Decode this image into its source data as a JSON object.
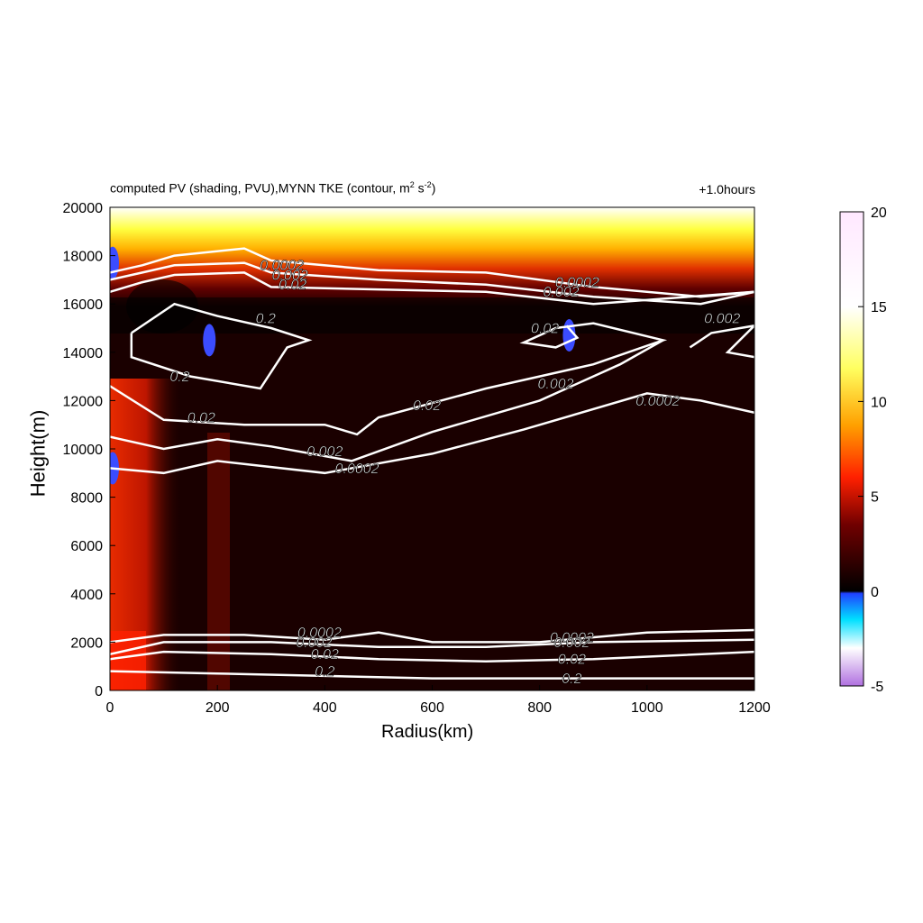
{
  "chart_data": {
    "type": "heatmap",
    "title_prefix": "computed PV (shading, PVU),MYNN TKE (contour, m",
    "title_units_sq": "2",
    "title_mid": " s",
    "title_units_neg2": "-2",
    "title_suffix": ")",
    "time_label": "+1.0hours",
    "xlabel": "Radius(km)",
    "ylabel": "Height(m)",
    "xlim": [
      0,
      1200
    ],
    "ylim": [
      0,
      20000
    ],
    "xticks": [
      "0",
      "200",
      "400",
      "600",
      "800",
      "1000",
      "1200"
    ],
    "yticks": [
      "0",
      "2000",
      "4000",
      "6000",
      "8000",
      "10000",
      "12000",
      "14000",
      "16000",
      "18000",
      "20000"
    ],
    "colorbar": {
      "range": [
        -5,
        20
      ],
      "ticks": [
        "-5",
        "0",
        "5",
        "10",
        "15",
        "20"
      ]
    },
    "contour_levels": [
      "0.0002",
      "0.002",
      "0.02",
      "0.2"
    ],
    "contours": [
      {
        "level": "0.0002",
        "label": "0.0002",
        "points": [
          [
            0,
            17300
          ],
          [
            60,
            17600
          ],
          [
            120,
            18000
          ],
          [
            250,
            18300
          ],
          [
            300,
            17800
          ],
          [
            500,
            17400
          ],
          [
            700,
            17300
          ],
          [
            900,
            16700
          ],
          [
            1100,
            16300
          ],
          [
            1200,
            16500
          ]
        ]
      },
      {
        "level": "0.002",
        "label": "0.002",
        "points": [
          [
            0,
            17000
          ],
          [
            60,
            17300
          ],
          [
            120,
            17600
          ],
          [
            250,
            17700
          ],
          [
            300,
            17300
          ],
          [
            500,
            17000
          ],
          [
            700,
            16800
          ],
          [
            900,
            16300
          ],
          [
            1100,
            16000
          ],
          [
            1200,
            16500
          ]
        ]
      },
      {
        "level": "0.02",
        "label": "0.02",
        "points": [
          [
            0,
            16500
          ],
          [
            60,
            16900
          ],
          [
            120,
            17200
          ],
          [
            250,
            17300
          ],
          [
            300,
            16700
          ],
          [
            500,
            16600
          ],
          [
            700,
            16500
          ],
          [
            900,
            16000
          ],
          [
            1200,
            16500
          ]
        ]
      },
      {
        "level": "0.2",
        "label": "0.2",
        "points": [
          [
            40,
            14800
          ],
          [
            120,
            16000
          ],
          [
            200,
            15500
          ],
          [
            300,
            15000
          ],
          [
            370,
            14500
          ],
          [
            330,
            14200
          ],
          [
            280,
            12500
          ],
          [
            150,
            13000
          ],
          [
            40,
            13800
          ],
          [
            40,
            14800
          ]
        ]
      },
      {
        "level": "0.02",
        "label": "0.02",
        "points": [
          [
            0,
            12600
          ],
          [
            100,
            11200
          ],
          [
            250,
            11000
          ],
          [
            400,
            11000
          ],
          [
            460,
            10600
          ],
          [
            500,
            11300
          ],
          [
            700,
            12500
          ],
          [
            900,
            13500
          ],
          [
            1030,
            14500
          ],
          [
            900,
            15200
          ],
          [
            830,
            15000
          ],
          [
            770,
            14400
          ],
          [
            830,
            14200
          ],
          [
            870,
            14600
          ],
          [
            850,
            15100
          ]
        ]
      },
      {
        "level": "0.002",
        "label": "0.002",
        "points": [
          [
            0,
            10500
          ],
          [
            100,
            10000
          ],
          [
            200,
            10400
          ],
          [
            300,
            10100
          ],
          [
            450,
            9500
          ],
          [
            600,
            10700
          ],
          [
            800,
            12000
          ],
          [
            950,
            13500
          ],
          [
            1030,
            14500
          ]
        ]
      },
      {
        "level": "0.0002",
        "label": "0.0002",
        "points": [
          [
            0,
            9200
          ],
          [
            100,
            9000
          ],
          [
            200,
            9500
          ],
          [
            400,
            9000
          ],
          [
            600,
            9800
          ],
          [
            770,
            10800
          ],
          [
            1000,
            12300
          ],
          [
            1100,
            12000
          ],
          [
            1200,
            11500
          ]
        ]
      },
      {
        "level": "0.002",
        "label": "0.002",
        "points": [
          [
            1080,
            14200
          ],
          [
            1120,
            14800
          ],
          [
            1200,
            15100
          ],
          [
            1150,
            14000
          ],
          [
            1200,
            13800
          ]
        ]
      },
      {
        "level": "0.0002",
        "label": "0.0002",
        "points": [
          [
            0,
            2000
          ],
          [
            100,
            2300
          ],
          [
            250,
            2300
          ],
          [
            400,
            2100
          ],
          [
            500,
            2400
          ],
          [
            600,
            2000
          ],
          [
            800,
            2000
          ],
          [
            1000,
            2400
          ],
          [
            1200,
            2500
          ]
        ]
      },
      {
        "level": "0.002",
        "label": "0.002",
        "points": [
          [
            0,
            1500
          ],
          [
            100,
            2000
          ],
          [
            300,
            2000
          ],
          [
            500,
            1800
          ],
          [
            700,
            1800
          ],
          [
            900,
            2000
          ],
          [
            1200,
            2100
          ]
        ]
      },
      {
        "level": "0.02",
        "label": "0.02",
        "points": [
          [
            0,
            1300
          ],
          [
            100,
            1600
          ],
          [
            300,
            1500
          ],
          [
            500,
            1300
          ],
          [
            700,
            1200
          ],
          [
            900,
            1300
          ],
          [
            1200,
            1600
          ]
        ]
      },
      {
        "level": "0.2",
        "label": "0.2",
        "points": [
          [
            0,
            800
          ],
          [
            200,
            700
          ],
          [
            400,
            600
          ],
          [
            600,
            500
          ],
          [
            800,
            500
          ],
          [
            1000,
            500
          ],
          [
            1200,
            500
          ]
        ]
      }
    ],
    "contour_labels": [
      {
        "text": "0.0002",
        "x": 320,
        "y": 17400
      },
      {
        "text": "0.002",
        "x": 335,
        "y": 17000
      },
      {
        "text": "0.02",
        "x": 340,
        "y": 16600
      },
      {
        "text": "0.0002",
        "x": 870,
        "y": 16700
      },
      {
        "text": "0.002",
        "x": 840,
        "y": 16300
      },
      {
        "text": "0.02",
        "x": 810,
        "y": 14800
      },
      {
        "text": "0.2",
        "x": 290,
        "y": 15200
      },
      {
        "text": "0.2",
        "x": 130,
        "y": 12800
      },
      {
        "text": "0.002",
        "x": 1140,
        "y": 15200
      },
      {
        "text": "0.02",
        "x": 170,
        "y": 11100
      },
      {
        "text": "0.002",
        "x": 400,
        "y": 9700
      },
      {
        "text": "0.0002",
        "x": 460,
        "y": 9000
      },
      {
        "text": "0.02",
        "x": 590,
        "y": 11600
      },
      {
        "text": "0.002",
        "x": 830,
        "y": 12500
      },
      {
        "text": "0.0002",
        "x": 1020,
        "y": 11800
      },
      {
        "text": "0.0002",
        "x": 390,
        "y": 2200
      },
      {
        "text": "0.002",
        "x": 380,
        "y": 1800
      },
      {
        "text": "0.02",
        "x": 400,
        "y": 1300
      },
      {
        "text": "0.2",
        "x": 400,
        "y": 600
      },
      {
        "text": "0.0002",
        "x": 860,
        "y": 2000
      },
      {
        "text": "0.002",
        "x": 860,
        "y": 1800
      },
      {
        "text": "0.02",
        "x": 860,
        "y": 1100
      },
      {
        "text": "0.2",
        "x": 860,
        "y": 300
      }
    ],
    "negative_pv_patches": [
      {
        "x": 185,
        "y": 14500
      },
      {
        "x": 855,
        "y": 14700
      },
      {
        "x": 5,
        "y": 17700
      },
      {
        "x": 5,
        "y": 9200
      }
    ],
    "colors": {
      "contour": "#ffffff",
      "background": "#1a0000",
      "negative_pv": "#3b4cff"
    }
  }
}
